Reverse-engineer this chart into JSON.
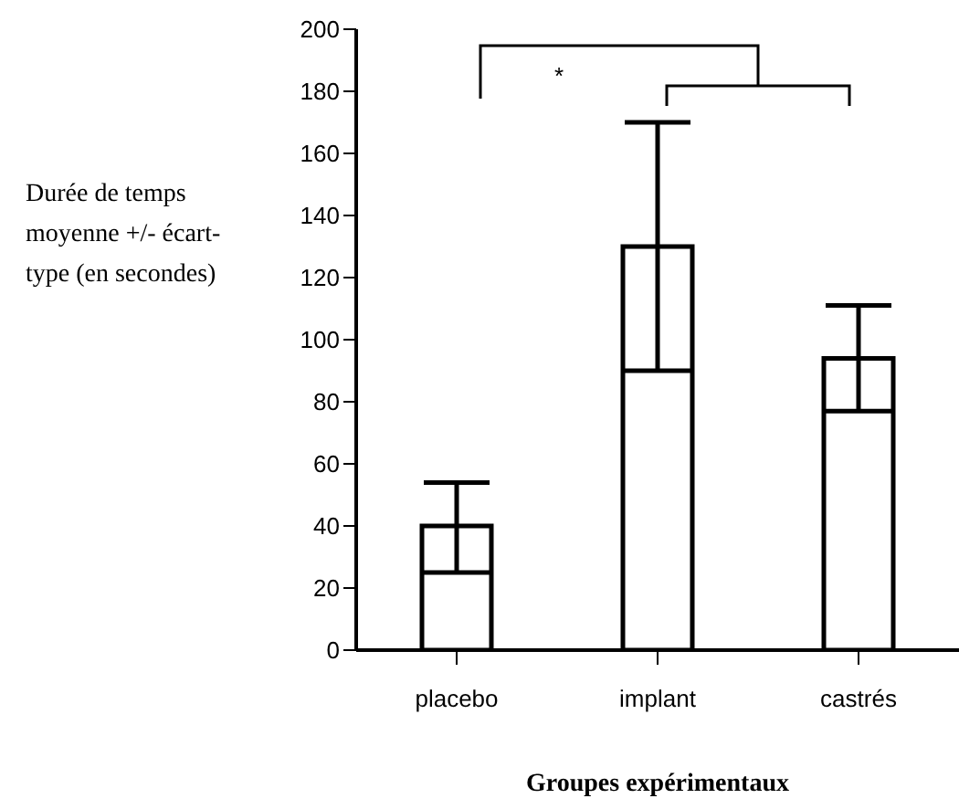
{
  "chart_data": {
    "type": "bar",
    "xlabel": "Groupes expérimentaux",
    "ylabel": "Durée de temps moyenne +/- écart-type (en secondes)",
    "categories": [
      "placebo",
      "implant",
      "castrés"
    ],
    "values": [
      40,
      130,
      94
    ],
    "errors": [
      [
        25,
        54
      ],
      [
        90,
        170
      ],
      [
        77,
        111
      ]
    ],
    "color": "#ffffff",
    "ylim": [
      0,
      200
    ],
    "yticks": [
      0,
      20,
      40,
      60,
      80,
      100,
      120,
      140,
      160,
      180,
      200
    ],
    "grid": false,
    "annotations": [
      "*"
    ]
  }
}
